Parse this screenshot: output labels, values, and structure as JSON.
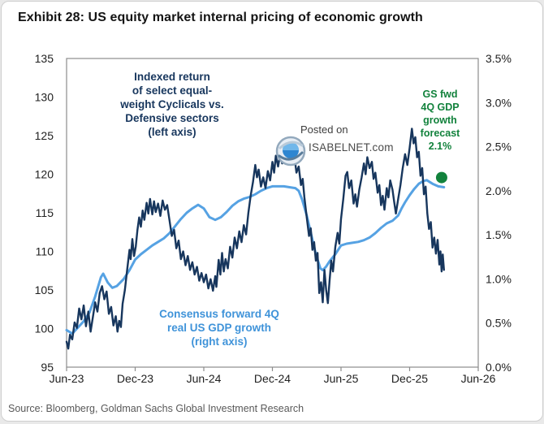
{
  "title": "Exhibit 28: US equity market internal pricing of economic growth",
  "source": "Source: Bloomberg, Goldman Sachs Global Investment Research",
  "watermark": {
    "line1": "Posted on",
    "line2": "ISABELNET.com",
    "logo": "globe-swirl-icon"
  },
  "annotations": {
    "cyclicals": {
      "text": "Indexed return\nof select equal-\nweight Cyclicals vs.\nDefensive sectors\n(left axis)",
      "color": "#17365d"
    },
    "gdp_consensus": {
      "text": "Consensus forward 4Q\nreal US GDP growth\n(right axis)",
      "color": "#3f93d9"
    },
    "forecast": {
      "text": "GS fwd\n4Q GDP\ngrowth\nforecast\n2.1%",
      "color": "#12823c"
    }
  },
  "colors": {
    "cyclicals_line": "#17365d",
    "gdp_line": "#56a2e3",
    "forecast_dot": "#12823c",
    "frame": "#8c8c8c"
  },
  "chart_data": {
    "type": "line",
    "title": "US equity market internal pricing of economic growth",
    "x_unit": "months since Jun-2023",
    "xlim": [
      0,
      36
    ],
    "grid": false,
    "legend_position": "in-plot text annotations",
    "x_ticks": [
      {
        "label": "Jun-23",
        "m": 0
      },
      {
        "label": "Dec-23",
        "m": 6
      },
      {
        "label": "Jun-24",
        "m": 12
      },
      {
        "label": "Dec-24",
        "m": 18
      },
      {
        "label": "Jun-25",
        "m": 24
      },
      {
        "label": "Dec-25",
        "m": 30
      },
      {
        "label": "Jun-26",
        "m": 36
      }
    ],
    "left_axis": {
      "label": "Indexed return of select equal-weight Cyclicals vs. Defensive sectors",
      "min": 95,
      "max": 135,
      "ticks": [
        135,
        130,
        125,
        120,
        115,
        110,
        105,
        100,
        95
      ]
    },
    "right_axis": {
      "label": "Consensus forward 4Q real US GDP growth",
      "min": 0.0,
      "max": 3.5,
      "ticks": [
        3.5,
        3.0,
        2.5,
        2.0,
        1.5,
        1.0,
        0.5,
        0.0
      ],
      "format": "percent"
    },
    "series": [
      {
        "name": "Indexed return of select equal-weight Cyclicals vs. Defensive sectors (left axis)",
        "axis": "left",
        "color": "#17365d",
        "width": 2.4,
        "points": [
          [
            0,
            98.3
          ],
          [
            0.15,
            97.4
          ],
          [
            0.3,
            99.2
          ],
          [
            0.5,
            98.6
          ],
          [
            0.7,
            100.8
          ],
          [
            0.9,
            100.1
          ],
          [
            1.1,
            102.6
          ],
          [
            1.3,
            101.2
          ],
          [
            1.5,
            103
          ],
          [
            1.7,
            100.3
          ],
          [
            1.9,
            102.2
          ],
          [
            2.1,
            99.6
          ],
          [
            2.3,
            101.5
          ],
          [
            2.5,
            103.4
          ],
          [
            2.7,
            102.2
          ],
          [
            2.9,
            104.6
          ],
          [
            3.1,
            105.5
          ],
          [
            3.3,
            103.8
          ],
          [
            3.5,
            104.8
          ],
          [
            3.7,
            101.9
          ],
          [
            3.9,
            102.8
          ],
          [
            4.1,
            100.4
          ],
          [
            4.3,
            101.6
          ],
          [
            4.45,
            99.6
          ],
          [
            4.6,
            101
          ],
          [
            4.75,
            100.2
          ],
          [
            4.9,
            103.2
          ],
          [
            5.1,
            105
          ],
          [
            5.3,
            107.6
          ],
          [
            5.5,
            110.2
          ],
          [
            5.6,
            109
          ],
          [
            5.75,
            111.6
          ],
          [
            5.9,
            109.4
          ],
          [
            6.05,
            110.6
          ],
          [
            6.2,
            112.8
          ],
          [
            6.35,
            114.4
          ],
          [
            6.5,
            113.2
          ],
          [
            6.65,
            115.3
          ],
          [
            6.8,
            114.1
          ],
          [
            7,
            116.3
          ],
          [
            7.15,
            114.9
          ],
          [
            7.3,
            116.8
          ],
          [
            7.5,
            114.8
          ],
          [
            7.65,
            116.5
          ],
          [
            7.8,
            115.1
          ],
          [
            8,
            116.2
          ],
          [
            8.2,
            114.6
          ],
          [
            8.4,
            116.6
          ],
          [
            8.6,
            115.4
          ],
          [
            8.8,
            116
          ],
          [
            9,
            114
          ],
          [
            9.2,
            112
          ],
          [
            9.4,
            112.8
          ],
          [
            9.6,
            110.4
          ],
          [
            9.8,
            111.4
          ],
          [
            10,
            109
          ],
          [
            10.2,
            110
          ],
          [
            10.4,
            108.2
          ],
          [
            10.6,
            109.4
          ],
          [
            10.8,
            107.6
          ],
          [
            11,
            108.6
          ],
          [
            11.2,
            107
          ],
          [
            11.4,
            108
          ],
          [
            11.6,
            106.2
          ],
          [
            11.8,
            107.2
          ],
          [
            12,
            106
          ],
          [
            12.2,
            107
          ],
          [
            12.4,
            105.2
          ],
          [
            12.6,
            106.4
          ],
          [
            12.8,
            104.9
          ],
          [
            13,
            106.8
          ],
          [
            13.1,
            105.4
          ],
          [
            13.3,
            108.9
          ],
          [
            13.45,
            107
          ],
          [
            13.6,
            109.8
          ],
          [
            13.75,
            107.4
          ],
          [
            13.9,
            109
          ],
          [
            14.1,
            107.8
          ],
          [
            14.3,
            110.6
          ],
          [
            14.5,
            109.2
          ],
          [
            14.7,
            111.8
          ],
          [
            14.9,
            110.4
          ],
          [
            15.1,
            112.6
          ],
          [
            15.3,
            111.2
          ],
          [
            15.5,
            113.4
          ],
          [
            15.7,
            112.2
          ],
          [
            15.9,
            115
          ],
          [
            16.1,
            117.2
          ],
          [
            16.3,
            119
          ],
          [
            16.5,
            121.2
          ],
          [
            16.65,
            119.6
          ],
          [
            16.8,
            120.6
          ],
          [
            17,
            118.4
          ],
          [
            17.2,
            119.6
          ],
          [
            17.4,
            118.2
          ],
          [
            17.6,
            120.4
          ],
          [
            17.8,
            119.2
          ],
          [
            18,
            121.6
          ],
          [
            18.15,
            120.2
          ],
          [
            18.3,
            122.4
          ],
          [
            18.5,
            121
          ],
          [
            18.7,
            122.8
          ],
          [
            18.85,
            121.4
          ],
          [
            19,
            123.2
          ],
          [
            19.2,
            124.3
          ],
          [
            19.35,
            122.6
          ],
          [
            19.5,
            123.6
          ],
          [
            19.7,
            121.8
          ],
          [
            19.9,
            122.6
          ],
          [
            20.1,
            120.2
          ],
          [
            20.3,
            121
          ],
          [
            20.5,
            118.6
          ],
          [
            20.65,
            119.4
          ],
          [
            20.8,
            117
          ],
          [
            21,
            114.4
          ],
          [
            21.2,
            112
          ],
          [
            21.35,
            113
          ],
          [
            21.5,
            110.2
          ],
          [
            21.65,
            111.2
          ],
          [
            21.8,
            108.8
          ],
          [
            21.95,
            109.8
          ],
          [
            22.1,
            104.6
          ],
          [
            22.25,
            106
          ],
          [
            22.4,
            103.4
          ],
          [
            22.55,
            107.6
          ],
          [
            22.7,
            105
          ],
          [
            22.85,
            103.3
          ],
          [
            23,
            106.2
          ],
          [
            23.15,
            108.8
          ],
          [
            23.3,
            107.4
          ],
          [
            23.5,
            110.6
          ],
          [
            23.7,
            112.4
          ],
          [
            23.85,
            111
          ],
          [
            24,
            114.2
          ],
          [
            24.2,
            116.8
          ],
          [
            24.4,
            119.8
          ],
          [
            24.55,
            120.3
          ],
          [
            24.7,
            118.2
          ],
          [
            24.9,
            119.2
          ],
          [
            25.1,
            116.2
          ],
          [
            25.25,
            117.4
          ],
          [
            25.4,
            115.8
          ],
          [
            25.6,
            118
          ],
          [
            25.8,
            119.6
          ],
          [
            26,
            121.4
          ],
          [
            26.15,
            120
          ],
          [
            26.3,
            122.2
          ],
          [
            26.5,
            120.8
          ],
          [
            26.7,
            121.6
          ],
          [
            26.85,
            119.4
          ],
          [
            27,
            120.2
          ],
          [
            27.2,
            117.6
          ],
          [
            27.35,
            118.6
          ],
          [
            27.5,
            116
          ],
          [
            27.65,
            117.2
          ],
          [
            27.8,
            115.4
          ],
          [
            28,
            118.2
          ],
          [
            28.15,
            117
          ],
          [
            28.3,
            119.2
          ],
          [
            28.5,
            118
          ],
          [
            28.65,
            116.4
          ],
          [
            28.8,
            114.9
          ],
          [
            29,
            116.8
          ],
          [
            29.2,
            118.6
          ],
          [
            29.4,
            120.8
          ],
          [
            29.6,
            122.6
          ],
          [
            29.8,
            121.2
          ],
          [
            30,
            123.4
          ],
          [
            30.2,
            125.9
          ],
          [
            30.35,
            124
          ],
          [
            30.5,
            124.8
          ],
          [
            30.65,
            122.2
          ],
          [
            30.8,
            122.9
          ],
          [
            30.95,
            119.8
          ],
          [
            31.1,
            120.8
          ],
          [
            31.25,
            117.4
          ],
          [
            31.4,
            118.4
          ],
          [
            31.55,
            114.9
          ],
          [
            31.7,
            112.9
          ],
          [
            31.85,
            113.8
          ],
          [
            32,
            110.5
          ],
          [
            32.15,
            111.8
          ],
          [
            32.3,
            109.7
          ],
          [
            32.45,
            111.5
          ],
          [
            32.6,
            108.3
          ],
          [
            32.7,
            110
          ],
          [
            32.8,
            107.4
          ],
          [
            32.9,
            109.6
          ],
          [
            33,
            107.6
          ]
        ]
      },
      {
        "name": "Consensus forward 4Q real US GDP growth (right axis)",
        "axis": "right",
        "color": "#56a2e3",
        "width": 3,
        "points": [
          [
            0,
            0.42
          ],
          [
            0.5,
            0.38
          ],
          [
            1,
            0.45
          ],
          [
            1.5,
            0.52
          ],
          [
            2,
            0.62
          ],
          [
            2.5,
            0.8
          ],
          [
            3,
            1.02
          ],
          [
            3.2,
            1.06
          ],
          [
            3.6,
            0.96
          ],
          [
            4,
            0.9
          ],
          [
            4.4,
            0.92
          ],
          [
            5,
            1
          ],
          [
            5.5,
            1.1
          ],
          [
            6,
            1.22
          ],
          [
            6.5,
            1.28
          ],
          [
            7,
            1.33
          ],
          [
            7.5,
            1.38
          ],
          [
            8,
            1.42
          ],
          [
            8.5,
            1.46
          ],
          [
            9,
            1.52
          ],
          [
            9.5,
            1.6
          ],
          [
            10,
            1.68
          ],
          [
            10.5,
            1.75
          ],
          [
            11,
            1.8
          ],
          [
            11.5,
            1.84
          ],
          [
            12,
            1.8
          ],
          [
            12.5,
            1.7
          ],
          [
            13,
            1.67
          ],
          [
            13.5,
            1.7
          ],
          [
            14,
            1.76
          ],
          [
            14.5,
            1.83
          ],
          [
            15,
            1.88
          ],
          [
            15.5,
            1.91
          ],
          [
            16,
            1.93
          ],
          [
            16.5,
            1.96
          ],
          [
            17,
            2
          ],
          [
            17.5,
            2.03
          ],
          [
            18,
            2.05
          ],
          [
            18.5,
            2.05
          ],
          [
            19,
            2.05
          ],
          [
            19.5,
            2.04
          ],
          [
            20,
            2.03
          ],
          [
            20.3,
            2
          ],
          [
            20.6,
            1.9
          ],
          [
            21,
            1.72
          ],
          [
            21.4,
            1.5
          ],
          [
            21.8,
            1.28
          ],
          [
            22.2,
            1.12
          ],
          [
            22.4,
            1.1
          ],
          [
            22.7,
            1.14
          ],
          [
            23,
            1.2
          ],
          [
            23.5,
            1.28
          ],
          [
            24,
            1.38
          ],
          [
            24.5,
            1.4
          ],
          [
            25,
            1.41
          ],
          [
            25.5,
            1.42
          ],
          [
            26,
            1.44
          ],
          [
            26.5,
            1.47
          ],
          [
            27,
            1.52
          ],
          [
            27.5,
            1.58
          ],
          [
            28,
            1.63
          ],
          [
            28.5,
            1.66
          ],
          [
            29,
            1.72
          ],
          [
            29.3,
            1.8
          ],
          [
            29.6,
            1.87
          ],
          [
            30,
            1.95
          ],
          [
            30.4,
            2.02
          ],
          [
            30.8,
            2.08
          ],
          [
            31.2,
            2.11
          ],
          [
            31.5,
            2.12
          ],
          [
            32,
            2.08
          ],
          [
            32.5,
            2.05
          ],
          [
            33,
            2.04
          ]
        ]
      }
    ],
    "forecast_dot": {
      "m": 32.8,
      "value": 2.15,
      "label": "GS fwd 4Q GDP growth forecast 2.1%",
      "color": "#12823c"
    }
  }
}
